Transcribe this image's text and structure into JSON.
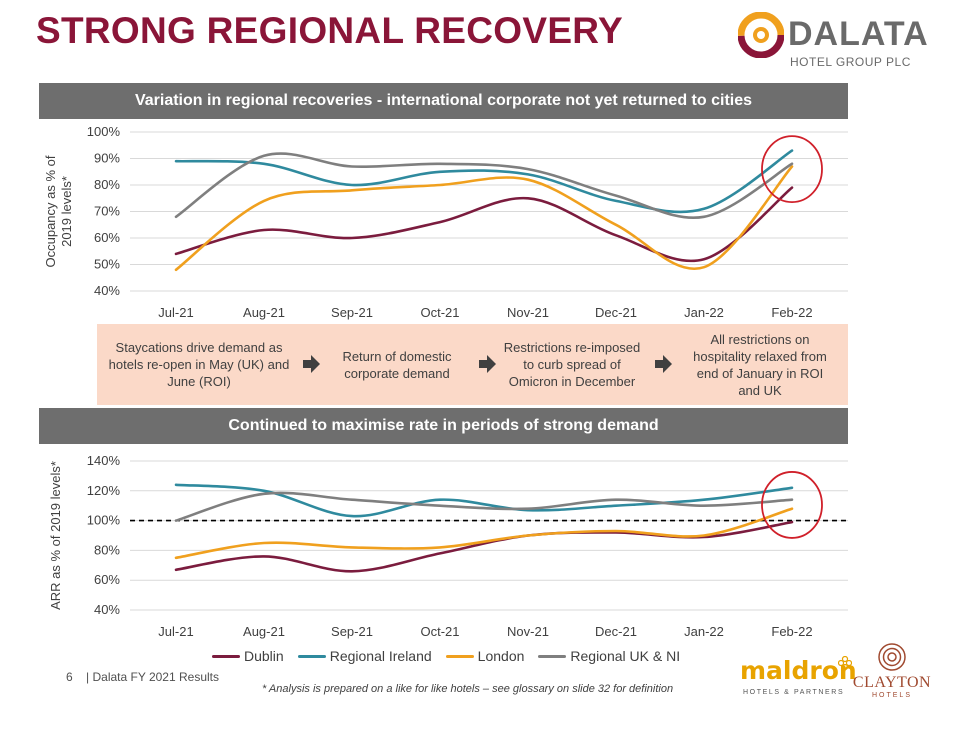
{
  "header": {
    "title": "STRONG REGIONAL RECOVERY",
    "logo_name": "DALATA",
    "logo_sub": "HOTEL GROUP PLC"
  },
  "banners": {
    "top": "Variation in regional recoveries - international corporate not yet returned to cities",
    "bottom": "Continued to maximise rate in periods of strong demand"
  },
  "events": [
    "Staycations drive demand as hotels re-open in May (UK) and June (ROI)",
    "Return of domestic corporate demand",
    "Restrictions re-imposed to curb spread of Omicron in December",
    "All restrictions on hospitality relaxed from end of January in ROI and UK"
  ],
  "legend": [
    {
      "name": "Dublin",
      "color": "#7b1c3e"
    },
    {
      "name": "Regional Ireland",
      "color": "#2f8a9e"
    },
    {
      "name": "London",
      "color": "#f0a01e"
    },
    {
      "name": "Regional UK & NI",
      "color": "#7f7f7f"
    }
  ],
  "footer": {
    "page": "6",
    "text": "| Dalata FY 2021 Results",
    "footnote": "* Analysis is prepared on a like for like hotels – see glossary on slide 32 for definition"
  },
  "brands": {
    "maldron": "maldron",
    "maldron_sub": "HOTELS & PARTNERS",
    "clayton": "CLAYTON",
    "clayton_sub": "HOTELS"
  },
  "chart_data": [
    {
      "type": "line",
      "title": "Variation in regional recoveries - international corporate not yet returned to cities",
      "xlabel": "",
      "ylabel": "Occupancy  as % of 2019 levels*",
      "categories": [
        "Jul-21",
        "Aug-21",
        "Sep-21",
        "Oct-21",
        "Nov-21",
        "Dec-21",
        "Jan-22",
        "Feb-22"
      ],
      "yticks": [
        "40%",
        "50%",
        "60%",
        "70%",
        "80%",
        "90%",
        "100%"
      ],
      "ylim": [
        40,
        100
      ],
      "grid": true,
      "series": [
        {
          "name": "Dublin",
          "color": "#7b1c3e",
          "values": [
            54,
            63,
            60,
            66,
            75,
            61,
            52,
            79
          ]
        },
        {
          "name": "Regional Ireland",
          "color": "#2f8a9e",
          "values": [
            89,
            88,
            80,
            85,
            84,
            74,
            71,
            93
          ]
        },
        {
          "name": "London",
          "color": "#f0a01e",
          "values": [
            48,
            74,
            78,
            80,
            82,
            65,
            49,
            87
          ]
        },
        {
          "name": "Regional UK & NI",
          "color": "#7f7f7f",
          "values": [
            68,
            91,
            87,
            88,
            86,
            76,
            68,
            88
          ]
        }
      ],
      "highlight": "Feb-22"
    },
    {
      "type": "line",
      "title": "Continued to maximise rate in periods of strong demand",
      "xlabel": "",
      "ylabel": "ARR as % of 2019 levels*",
      "categories": [
        "Jul-21",
        "Aug-21",
        "Sep-21",
        "Oct-21",
        "Nov-21",
        "Dec-21",
        "Jan-22",
        "Feb-22"
      ],
      "yticks": [
        "40%",
        "60%",
        "80%",
        "100%",
        "120%",
        "140%"
      ],
      "ylim": [
        40,
        140
      ],
      "grid": true,
      "reference_line": 100,
      "series": [
        {
          "name": "Dublin",
          "color": "#7b1c3e",
          "values": [
            67,
            76,
            66,
            78,
            90,
            92,
            89,
            99
          ]
        },
        {
          "name": "Regional Ireland",
          "color": "#2f8a9e",
          "values": [
            124,
            120,
            103,
            114,
            107,
            110,
            114,
            122
          ]
        },
        {
          "name": "London",
          "color": "#f0a01e",
          "values": [
            75,
            85,
            82,
            82,
            90,
            93,
            90,
            108
          ]
        },
        {
          "name": "Regional UK & NI",
          "color": "#7f7f7f",
          "values": [
            100,
            118,
            114,
            110,
            108,
            114,
            110,
            114
          ]
        }
      ],
      "highlight": "Feb-22"
    }
  ]
}
